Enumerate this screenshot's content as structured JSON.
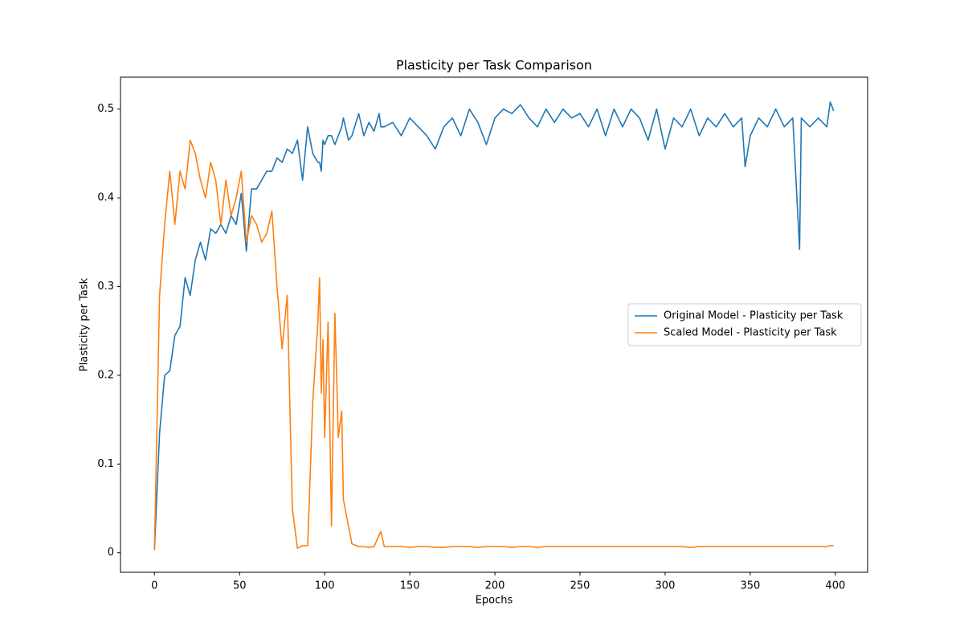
{
  "chart_data": {
    "type": "line",
    "title": "Plasticity per Task Comparison",
    "x_label": "Epochs",
    "y_label": "Plasticity per Task",
    "x": [
      0,
      3,
      6,
      9,
      12,
      15,
      18,
      21,
      24,
      27,
      30,
      33,
      36,
      39,
      42,
      45,
      48,
      51,
      54,
      57,
      60,
      63,
      66,
      69,
      72,
      75,
      78,
      81,
      84,
      87,
      90,
      93,
      96,
      97,
      98,
      99,
      100,
      102,
      104,
      106,
      108,
      110,
      111,
      114,
      116,
      120,
      123,
      126,
      129,
      132,
      133,
      135,
      140,
      145,
      150,
      155,
      160,
      165,
      170,
      175,
      180,
      185,
      190,
      195,
      200,
      205,
      210,
      215,
      220,
      225,
      230,
      235,
      240,
      245,
      250,
      255,
      260,
      265,
      270,
      275,
      280,
      285,
      290,
      295,
      300,
      305,
      310,
      315,
      320,
      325,
      330,
      335,
      340,
      345,
      347,
      350,
      355,
      360,
      365,
      370,
      375,
      379,
      380,
      385,
      390,
      395,
      397,
      399
    ],
    "series": [
      {
        "name": "Original Model - Plasticity per Task",
        "color": "#1f77b4",
        "values": [
          0.003,
          0.135,
          0.2,
          0.205,
          0.245,
          0.255,
          0.31,
          0.29,
          0.33,
          0.35,
          0.33,
          0.365,
          0.36,
          0.37,
          0.36,
          0.38,
          0.37,
          0.405,
          0.34,
          0.41,
          0.41,
          0.42,
          0.43,
          0.43,
          0.445,
          0.44,
          0.455,
          0.45,
          0.465,
          0.42,
          0.48,
          0.45,
          0.44,
          0.44,
          0.43,
          0.465,
          0.46,
          0.47,
          0.47,
          0.46,
          0.47,
          0.48,
          0.49,
          0.465,
          0.47,
          0.495,
          0.47,
          0.485,
          0.475,
          0.495,
          0.48,
          0.48,
          0.485,
          0.47,
          0.49,
          0.48,
          0.47,
          0.455,
          0.48,
          0.49,
          0.47,
          0.5,
          0.485,
          0.46,
          0.49,
          0.5,
          0.495,
          0.505,
          0.49,
          0.48,
          0.5,
          0.485,
          0.5,
          0.49,
          0.495,
          0.48,
          0.5,
          0.47,
          0.5,
          0.48,
          0.5,
          0.49,
          0.465,
          0.5,
          0.455,
          0.49,
          0.48,
          0.5,
          0.47,
          0.49,
          0.48,
          0.495,
          0.48,
          0.49,
          0.435,
          0.47,
          0.49,
          0.48,
          0.5,
          0.48,
          0.49,
          0.342,
          0.49,
          0.48,
          0.49,
          0.48,
          0.508,
          0.498
        ]
      },
      {
        "name": "Scaled Model - Plasticity per Task",
        "color": "#ff7f0e",
        "values": [
          0.003,
          0.29,
          0.37,
          0.43,
          0.37,
          0.43,
          0.41,
          0.465,
          0.45,
          0.42,
          0.4,
          0.44,
          0.42,
          0.37,
          0.42,
          0.38,
          0.4,
          0.43,
          0.35,
          0.38,
          0.37,
          0.35,
          0.36,
          0.385,
          0.3,
          0.23,
          0.29,
          0.05,
          0.005,
          0.008,
          0.008,
          0.17,
          0.26,
          0.31,
          0.18,
          0.24,
          0.13,
          0.26,
          0.03,
          0.27,
          0.13,
          0.16,
          0.06,
          0.03,
          0.01,
          0.007,
          0.007,
          0.006,
          0.007,
          0.02,
          0.024,
          0.007,
          0.007,
          0.007,
          0.006,
          0.007,
          0.007,
          0.006,
          0.006,
          0.007,
          0.007,
          0.007,
          0.006,
          0.007,
          0.007,
          0.007,
          0.006,
          0.007,
          0.007,
          0.006,
          0.007,
          0.007,
          0.007,
          0.007,
          0.007,
          0.007,
          0.007,
          0.007,
          0.007,
          0.007,
          0.007,
          0.007,
          0.007,
          0.007,
          0.007,
          0.007,
          0.007,
          0.006,
          0.007,
          0.007,
          0.007,
          0.007,
          0.007,
          0.007,
          0.007,
          0.007,
          0.007,
          0.007,
          0.007,
          0.007,
          0.007,
          0.007,
          0.007,
          0.007,
          0.007,
          0.007,
          0.008,
          0.008
        ]
      }
    ],
    "xlim": [
      -19.95,
      418.95
    ],
    "ylim": [
      -0.022,
      0.536
    ],
    "xticks": [
      0,
      50,
      100,
      150,
      200,
      250,
      300,
      350,
      400
    ],
    "yticks": [
      0.0,
      0.1,
      0.2,
      0.3,
      0.4,
      0.5
    ],
    "legend": "center right",
    "grid": false
  }
}
